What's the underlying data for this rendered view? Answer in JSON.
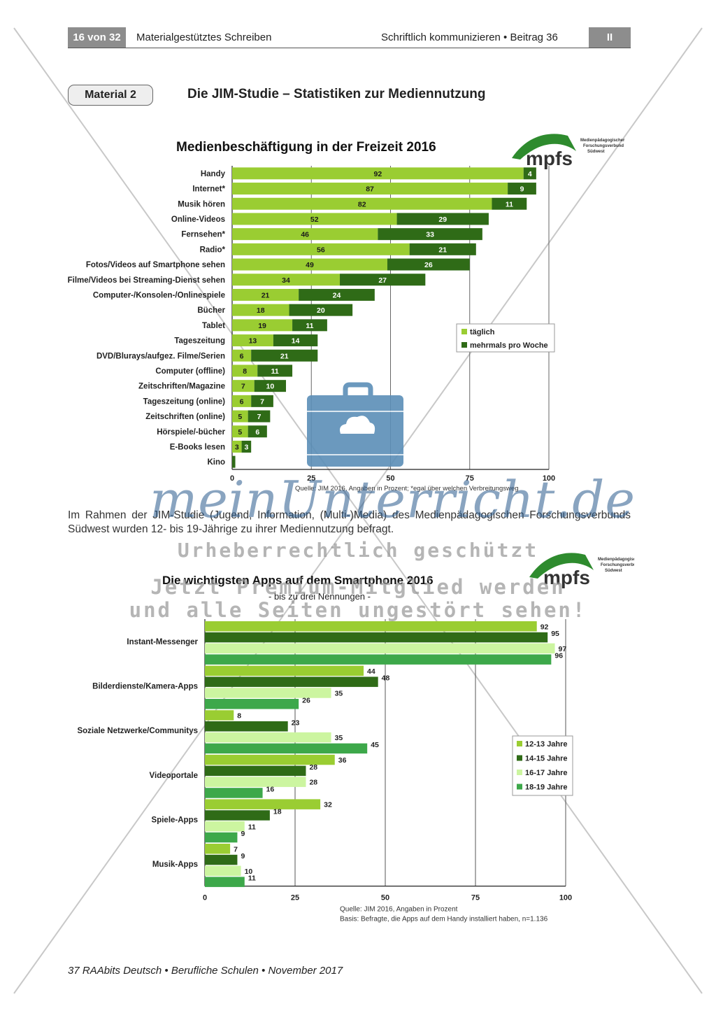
{
  "header": {
    "page_label": "16 von 32",
    "title": "Materialgestütztes Schreiben",
    "right": "Schriftlich kommunizieren • Beitrag 36",
    "box": "II"
  },
  "material": {
    "badge": "Material 2",
    "title": "Die JIM-Studie – Statistiken zur Mediennutzung"
  },
  "paragraph": "Im Rahmen der JIM-Studie (Jugend, Information, (Multi-)Media) des Medienpädagogischen Forschungsverbunds Südwest wurden 12- bis 19-Jährige zu ihrer Mediennutzung befragt.",
  "footer": "37 RAAbits Deutsch • Berufliche Schulen • November 2017",
  "logo": {
    "text": "mpfs",
    "sub1": "Medienpädagogischer",
    "sub2": "Forschungsverbund",
    "sub3": "Südwest"
  },
  "watermark": {
    "script": "meinUnterricht.de",
    "line1": "Urheberrechtlich geschützt",
    "line2": "Jetzt Premium-Mitglied werden",
    "line3": "und alle Seiten ungestört sehen!"
  },
  "colors": {
    "light_green": "#9acd32",
    "dark_green": "#2f6b17",
    "pale_green": "#ccf5a0",
    "mid_green": "#3da84a",
    "grey": "#8d8d8d",
    "briefcase": "#5b8fb8"
  },
  "chart_data": [
    {
      "type": "bar",
      "orientation": "horizontal",
      "stacked": true,
      "title": "Medienbeschäftigung in der Freizeit 2016",
      "categories": [
        "Handy",
        "Internet*",
        "Musik hören",
        "Online-Videos",
        "Fernsehen*",
        "Radio*",
        "Fotos/Videos auf Smartphone sehen",
        "Filme/Videos bei Streaming-Dienst sehen",
        "Computer-/Konsolen-/Onlinespiele",
        "Bücher",
        "Tablet",
        "Tageszeitung",
        "DVD/Blurays/aufgez. Filme/Serien",
        "Computer (offline)",
        "Zeitschriften/Magazine",
        "Tageszeitung (online)",
        "Zeitschriften (online)",
        "Hörspiele/-bücher",
        "E-Books lesen",
        "Kino"
      ],
      "series": [
        {
          "name": "täglich",
          "values": [
            92,
            87,
            82,
            52,
            46,
            56,
            49,
            34,
            21,
            18,
            19,
            13,
            6,
            8,
            7,
            6,
            5,
            5,
            3,
            0
          ]
        },
        {
          "name": "mehrmals pro Woche",
          "values": [
            4,
            9,
            11,
            29,
            33,
            21,
            26,
            27,
            24,
            20,
            11,
            14,
            21,
            11,
            10,
            7,
            7,
            6,
            3,
            1
          ]
        }
      ],
      "xlim": [
        0,
        100
      ],
      "xticks": [
        "0",
        "25",
        "50",
        "75",
        "100"
      ],
      "legend_position": "bottom-right",
      "source": "Quelle: JIM 2016, Angaben in Prozent; *egal über welchen Verbreitungsweg"
    },
    {
      "type": "bar",
      "orientation": "horizontal",
      "title": "Die wichtigsten Apps auf dem Smartphone 2016",
      "subtitle": "- bis zu drei Nennungen -",
      "categories": [
        "Instant-Messenger",
        "Bilderdienste/Kamera-Apps",
        "Soziale Netzwerke/Communitys",
        "Videoportale",
        "Spiele-Apps",
        "Musik-Apps"
      ],
      "series": [
        {
          "name": "12-13 Jahre",
          "values": [
            92,
            44,
            8,
            36,
            32,
            7
          ]
        },
        {
          "name": "14-15 Jahre",
          "values": [
            95,
            48,
            23,
            28,
            18,
            9
          ]
        },
        {
          "name": "16-17 Jahre",
          "values": [
            97,
            35,
            35,
            28,
            11,
            10
          ]
        },
        {
          "name": "18-19 Jahre",
          "values": [
            96,
            26,
            45,
            16,
            9,
            11
          ]
        }
      ],
      "xlim": [
        0,
        100
      ],
      "xticks": [
        "0",
        "25",
        "50",
        "75",
        "100"
      ],
      "legend_position": "right",
      "source1": "Quelle: JIM 2016, Angaben in Prozent",
      "source2": "Basis: Befragte, die Apps auf dem Handy installiert haben, n=1.136"
    }
  ]
}
